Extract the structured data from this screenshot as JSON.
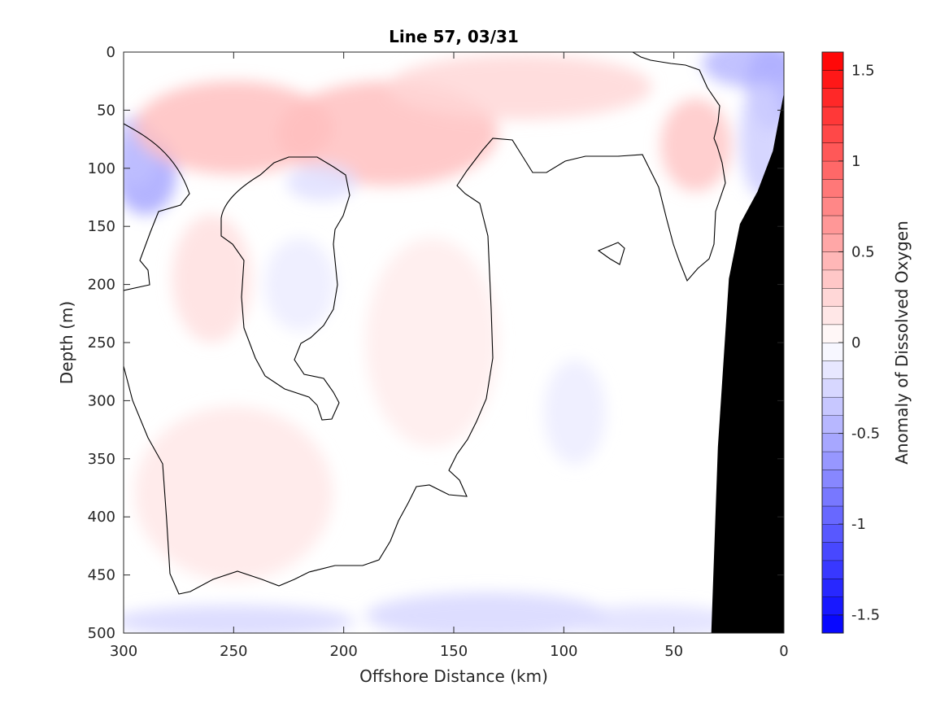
{
  "chart_data": {
    "type": "heatmap",
    "title": "Line 57, 03/31",
    "xlabel": "Offshore Distance (km)",
    "ylabel": "Depth (m)",
    "xlim": [
      300,
      0
    ],
    "ylim": [
      0,
      500
    ],
    "x_reversed": true,
    "y_reversed": true,
    "x_ticks": [
      300,
      250,
      200,
      150,
      100,
      50,
      0
    ],
    "y_ticks": [
      0,
      50,
      100,
      150,
      200,
      250,
      300,
      350,
      400,
      450,
      500
    ],
    "colorbar": {
      "label": "Anomaly of Dissolved Oxygen",
      "range": [
        -1.6,
        1.6
      ],
      "step": 0.1,
      "ticks": [
        1.5,
        1,
        0.5,
        0,
        -0.5,
        -1,
        -1.5
      ],
      "colormap": "blue-white-red",
      "neg_color": "#0000ff",
      "pos_color": "#ff0000",
      "mid_color": "#ffffff"
    },
    "bathymetry_color": "#000000",
    "bathymetry": [
      [
        0,
        35
      ],
      [
        5,
        85
      ],
      [
        12,
        120
      ],
      [
        20,
        148
      ],
      [
        25,
        195
      ],
      [
        30,
        340
      ],
      [
        33,
        500
      ],
      [
        0,
        500
      ]
    ],
    "field_samples": [
      {
        "x": 290,
        "y": 105,
        "v": -0.55
      },
      {
        "x": 295,
        "y": 85,
        "v": -0.4
      },
      {
        "x": 15,
        "y": 10,
        "v": -0.45
      },
      {
        "x": 5,
        "y": 30,
        "v": -0.5
      },
      {
        "x": 10,
        "y": 75,
        "v": -0.3
      },
      {
        "x": 250,
        "y": 65,
        "v": 0.4
      },
      {
        "x": 180,
        "y": 70,
        "v": 0.4
      },
      {
        "x": 120,
        "y": 30,
        "v": 0.25
      },
      {
        "x": 40,
        "y": 80,
        "v": 0.35
      },
      {
        "x": 260,
        "y": 195,
        "v": 0.2
      },
      {
        "x": 250,
        "y": 380,
        "v": 0.15
      },
      {
        "x": 160,
        "y": 250,
        "v": 0.12
      },
      {
        "x": 210,
        "y": 112,
        "v": -0.2
      },
      {
        "x": 220,
        "y": 200,
        "v": -0.12
      },
      {
        "x": 95,
        "y": 310,
        "v": -0.12
      },
      {
        "x": 135,
        "y": 485,
        "v": -0.25
      },
      {
        "x": 250,
        "y": 490,
        "v": -0.25
      },
      {
        "x": 60,
        "y": 490,
        "v": -0.2
      }
    ]
  }
}
